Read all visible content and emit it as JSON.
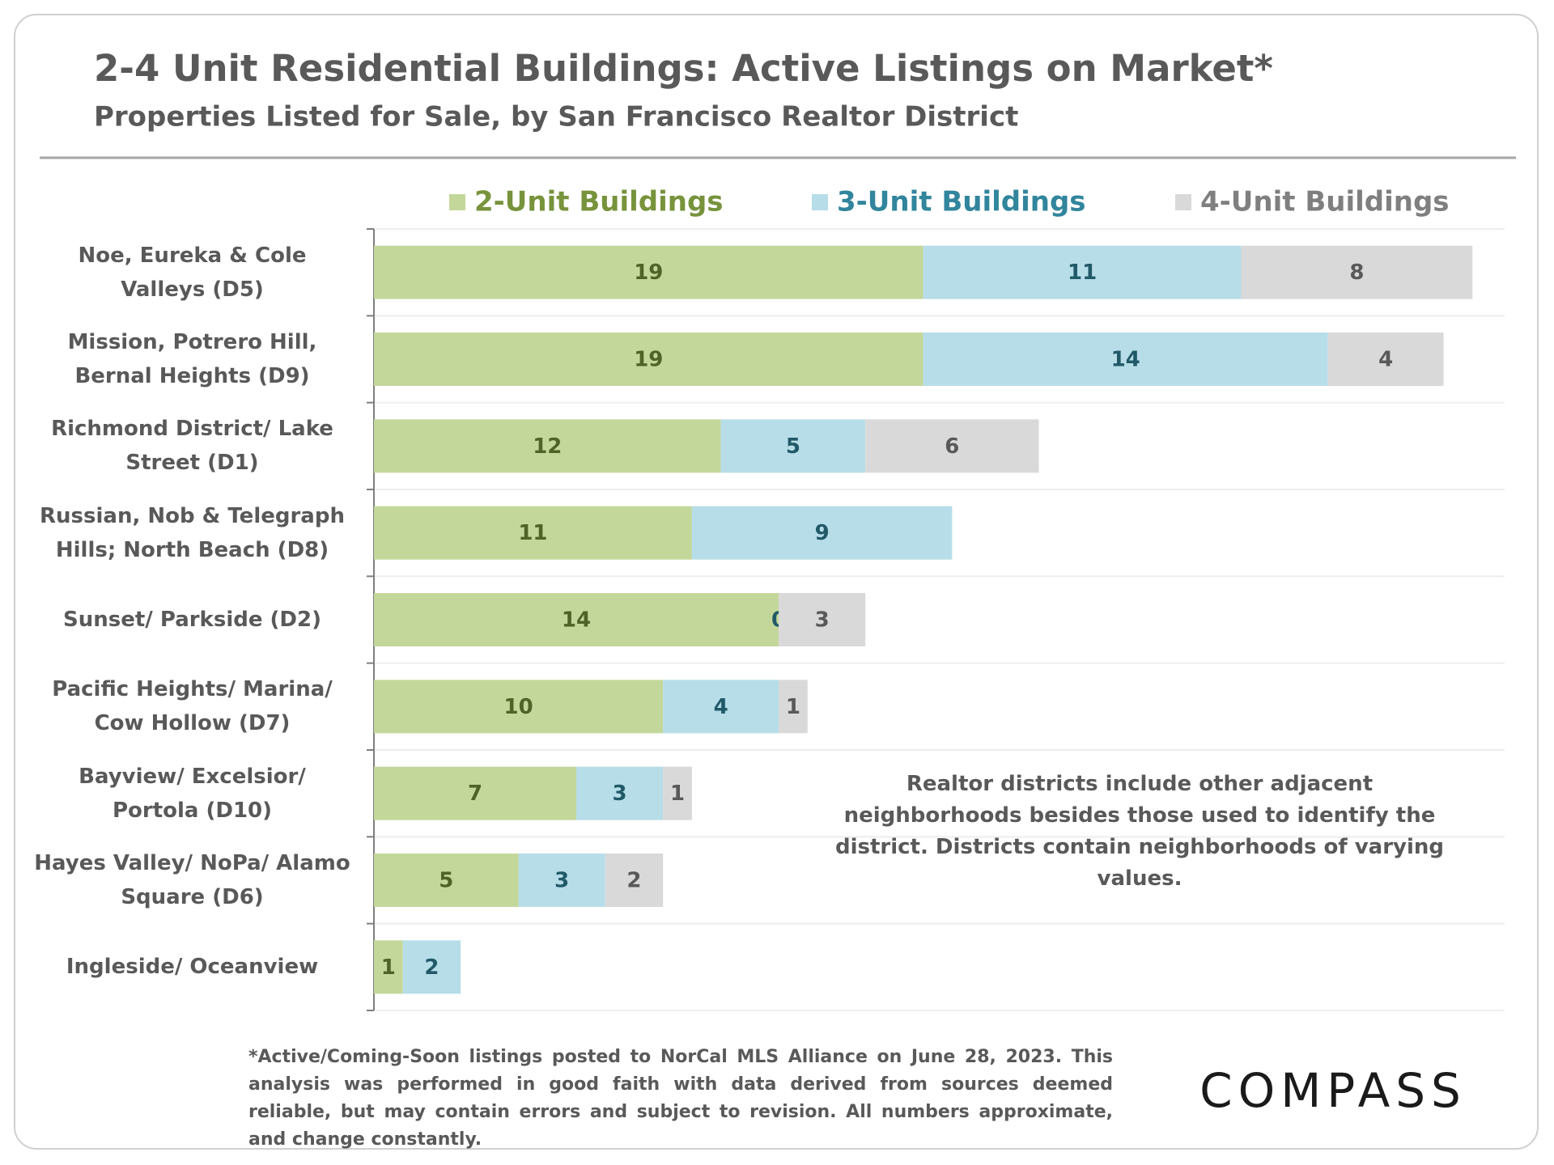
{
  "chart_data": {
    "type": "stacked-bar-horizontal",
    "title": "2-4 Unit Residential Buildings:  Active Listings on Market*",
    "subtitle": "Properties Listed for Sale, by San Francisco Realtor District",
    "categories": [
      "Noe, Eureka & Cole Valleys (D5)",
      "Mission, Potrero Hill, Bernal Heights (D9)",
      "Richmond District/ Lake Street (D1)",
      "Russian, Nob & Telegraph Hills; North Beach (D8)",
      "Sunset/ Parkside (D2)",
      "Pacific Heights/ Marina/ Cow Hollow (D7)",
      "Bayview/ Excelsior/ Portola (D10)",
      "Hayes Valley/ NoPa/ Alamo Square (D6)",
      "Ingleside/ Oceanview"
    ],
    "series": [
      {
        "name": "2-Unit Buildings",
        "color": "#c4d79b",
        "values": [
          19,
          19,
          12,
          11,
          14,
          10,
          7,
          5,
          1
        ]
      },
      {
        "name": "3-Unit Buildings",
        "color": "#b7dde8",
        "values": [
          11,
          14,
          5,
          9,
          0,
          4,
          3,
          3,
          2
        ]
      },
      {
        "name": "4-Unit Buildings",
        "color": "#d9d9d9",
        "values": [
          8,
          4,
          6,
          null,
          3,
          1,
          1,
          2,
          null
        ]
      }
    ],
    "xlim": [
      0,
      39
    ],
    "legend": "top",
    "note": "Realtor districts include other adjacent neighborhoods besides those used to identify the district. Districts contain neighborhoods of varying values.",
    "footnote": "*Active/Coming-Soon listings posted to NorCal MLS Alliance on June 28, 2023. This analysis was performed in good faith with data derived from sources deemed reliable, but may contain errors and subject to revision. All numbers approximate, and change constantly.",
    "brand": "COMPASS"
  }
}
